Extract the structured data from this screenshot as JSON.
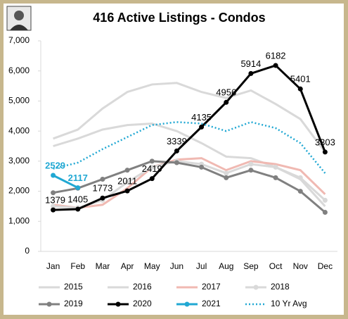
{
  "chart_data": {
    "type": "line",
    "title": "416 Active Listings - Condos",
    "categories": [
      "Jan",
      "Feb",
      "Mar",
      "Apr",
      "May",
      "Jun",
      "Jul",
      "Aug",
      "Sep",
      "Oct",
      "Nov",
      "Dec"
    ],
    "ylim": [
      0,
      7000
    ],
    "yticks": [
      0,
      {
        "value": 1000,
        "label": "1,000"
      },
      {
        "value": 2000,
        "label": "2,000"
      },
      {
        "value": 3000,
        "label": "3,000"
      },
      {
        "value": 4000,
        "label": "4,000"
      },
      {
        "value": 5000,
        "label": "5,000"
      },
      {
        "value": 6000,
        "label": "6,000"
      },
      {
        "value": 7000,
        "label": "7,000"
      }
    ],
    "grid": false,
    "legend": "bottom",
    "series": [
      {
        "name": "2015",
        "color": "#d9d9d9",
        "width": 3,
        "marker": false,
        "values": [
          3750,
          4050,
          4750,
          5300,
          5550,
          5600,
          5300,
          5100,
          5350,
          4900,
          4400,
          3300
        ]
      },
      {
        "name": "2016",
        "color": "#d9d9d9",
        "width": 3,
        "marker": false,
        "values": [
          3500,
          3750,
          4050,
          4200,
          4250,
          4000,
          3600,
          3150,
          3100,
          2800,
          2400,
          1500
        ]
      },
      {
        "name": "2017",
        "color": "#f0b9b2",
        "width": 3,
        "marker": false,
        "values": [
          1550,
          1450,
          1550,
          2100,
          2800,
          3050,
          3100,
          2700,
          3000,
          2900,
          2700,
          1900
        ]
      },
      {
        "name": "2018",
        "color": "#d9d9d9",
        "width": 3,
        "marker": true,
        "values": [
          1500,
          1450,
          1700,
          2300,
          2800,
          3000,
          2900,
          2600,
          2900,
          2800,
          2450,
          1700
        ]
      },
      {
        "name": "2019",
        "color": "#808080",
        "width": 3,
        "marker": true,
        "values": [
          1950,
          2100,
          2400,
          2700,
          3000,
          2950,
          2800,
          2450,
          2700,
          2450,
          2000,
          1300
        ]
      },
      {
        "name": "2020",
        "color": "#000000",
        "width": 3,
        "marker": true,
        "labels": true,
        "values": [
          1379,
          1405,
          1773,
          2011,
          2419,
          3339,
          4135,
          4956,
          5914,
          6182,
          5401,
          3303
        ]
      },
      {
        "name": "2021",
        "color": "#21a8d3",
        "width": 3,
        "marker": true,
        "labels": true,
        "values": [
          2529,
          2117,
          null,
          null,
          null,
          null,
          null,
          null,
          null,
          null,
          null,
          null
        ]
      },
      {
        "name": "10 Yr Avg",
        "color": "#21a8d3",
        "width": 2.5,
        "marker": false,
        "dash": true,
        "values": [
          2750,
          2950,
          3400,
          3800,
          4200,
          4300,
          4250,
          4000,
          4300,
          4100,
          3600,
          2600
        ]
      }
    ]
  }
}
